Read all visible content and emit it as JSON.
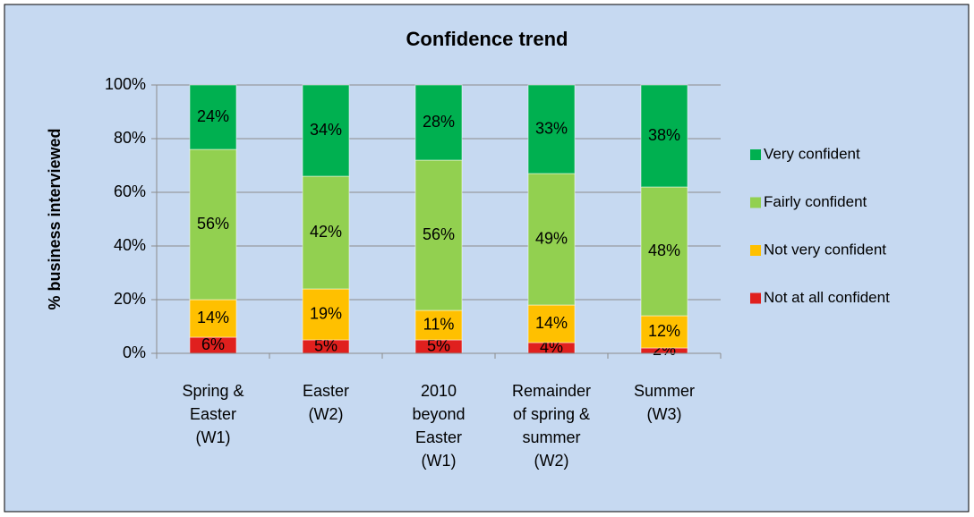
{
  "chart_data": {
    "type": "stacked_bar_100",
    "title": "Confidence trend",
    "y_label": "% business interviewed",
    "categories": [
      "Spring & Easter (W1)",
      "Easter (W2)",
      "2010 beyond Easter (W1)",
      "Remainder of spring & summer (W2)",
      "Summer (W3)"
    ],
    "series": [
      {
        "name": "Not at all confident",
        "color": "#e0201e",
        "values": [
          6,
          5,
          5,
          4,
          2
        ],
        "value_labels": [
          "6%",
          "5%",
          "5%",
          "4%",
          "2%"
        ]
      },
      {
        "name": "Not very  confident",
        "color": "#ffc000",
        "values": [
          14,
          19,
          11,
          14,
          12
        ],
        "value_labels": [
          "14%",
          "19%",
          "11%",
          "14%",
          "12%"
        ]
      },
      {
        "name": "Fairly confident",
        "color": "#92d050",
        "values": [
          56,
          42,
          56,
          49,
          48
        ],
        "value_labels": [
          "56%",
          "42%",
          "56%",
          "49%",
          "48%"
        ]
      },
      {
        "name": "Very confident",
        "color": "#00b050",
        "values": [
          24,
          34,
          28,
          33,
          38
        ],
        "value_labels": [
          "24%",
          "34%",
          "28%",
          "33%",
          "38%"
        ]
      }
    ],
    "ylim": [
      0,
      100
    ],
    "yticks": [
      {
        "value": 0,
        "label": "0%"
      },
      {
        "value": 20,
        "label": "20%"
      },
      {
        "value": 40,
        "label": "40%"
      },
      {
        "value": 60,
        "label": "60%"
      },
      {
        "value": 80,
        "label": "80%"
      },
      {
        "value": 100,
        "label": "100%"
      }
    ],
    "grid": true,
    "legend": "right"
  }
}
